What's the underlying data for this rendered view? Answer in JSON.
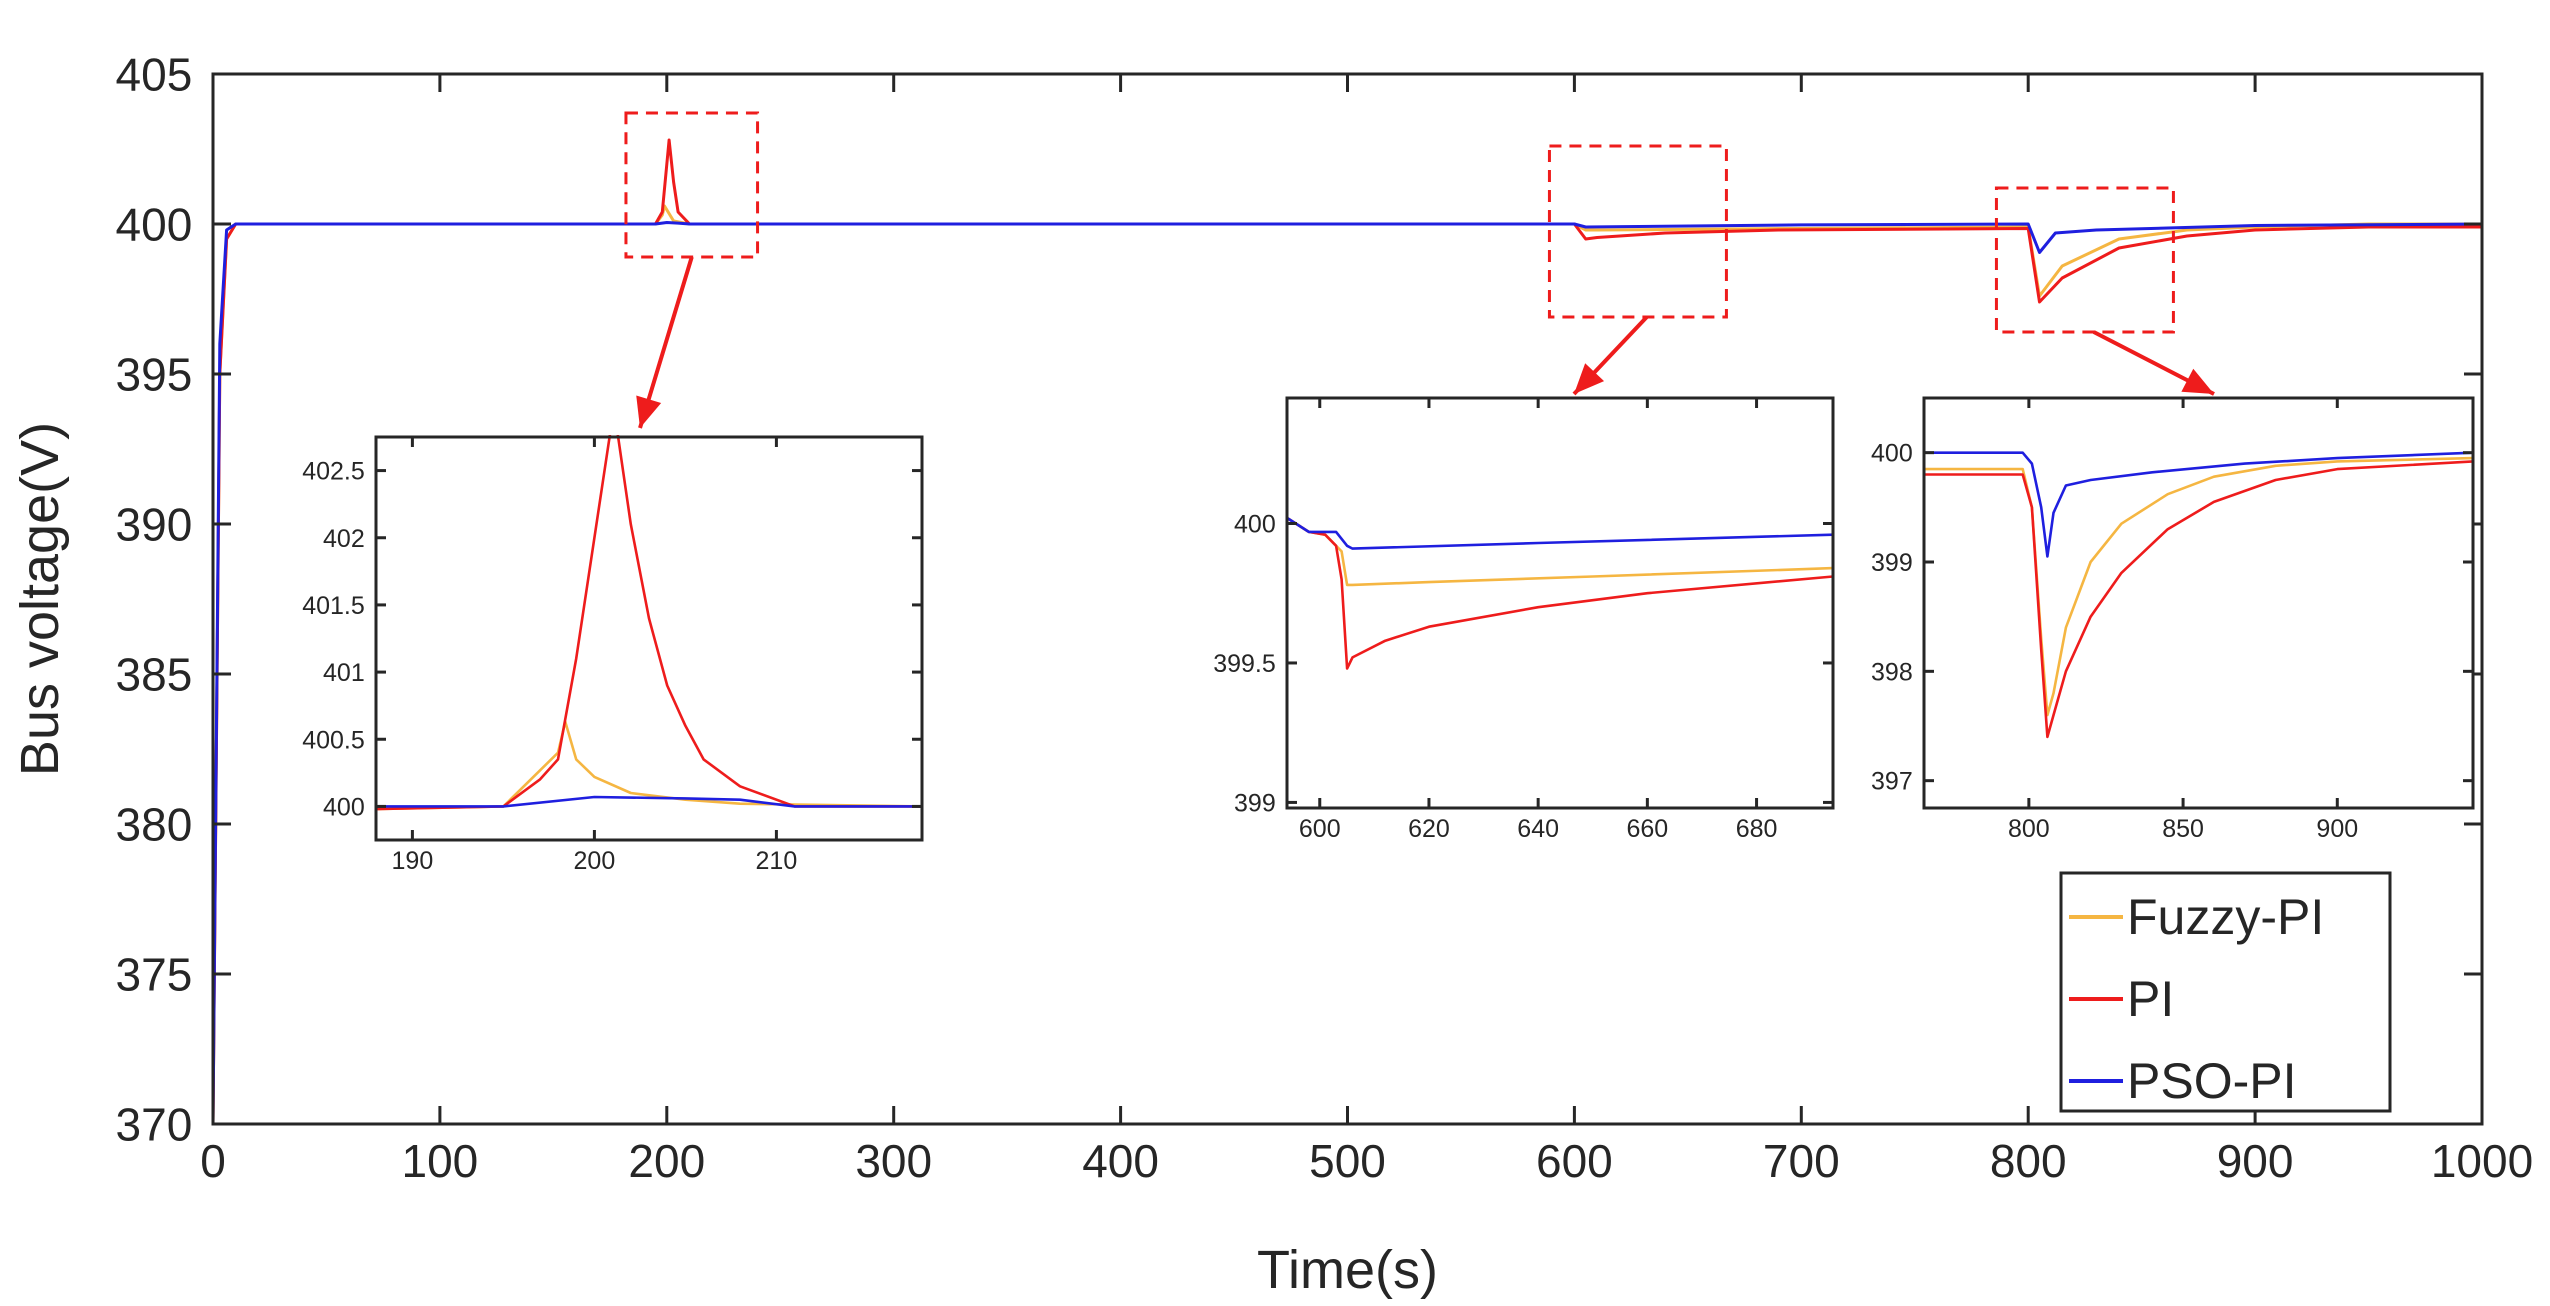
{
  "colors": {
    "fuzzy_pi": "#f5b642",
    "pi": "#ee1c1c",
    "pso_pi": "#1f1fdf",
    "axis": "#262626",
    "zoom_box": "#ee1c1c"
  },
  "chart_data": [
    {
      "id": "main",
      "type": "line",
      "title": "",
      "xlabel": "Time(s)",
      "ylabel": "Bus voltage(V)",
      "xlim": [
        0,
        1000
      ],
      "ylim": [
        370,
        405
      ],
      "xticks": [
        0,
        100,
        200,
        300,
        400,
        500,
        600,
        700,
        800,
        900,
        1000
      ],
      "yticks": [
        370,
        375,
        380,
        385,
        390,
        395,
        400,
        405
      ],
      "legend": {
        "position": "bottom-right",
        "entries": [
          "Fuzzy-PI",
          "PI",
          "PSO-PI"
        ]
      },
      "series": [
        {
          "name": "Fuzzy-PI",
          "x": [
            0,
            3,
            6,
            10,
            195,
            198,
            199,
            203,
            210,
            600,
            605,
            610,
            700,
            800,
            805,
            815,
            840,
            870,
            900,
            950,
            1000
          ],
          "y": [
            370,
            395,
            399.5,
            400,
            400,
            400.3,
            400.6,
            400.1,
            400,
            400,
            399.8,
            399.8,
            399.85,
            399.9,
            397.6,
            398.6,
            399.5,
            399.8,
            399.9,
            400,
            400
          ]
        },
        {
          "name": "PI",
          "x": [
            0,
            3,
            6,
            10,
            195,
            198,
            201,
            203,
            205,
            210,
            600,
            605,
            610,
            640,
            690,
            800,
            805,
            815,
            840,
            870,
            900,
            950,
            1000
          ],
          "y": [
            370,
            395,
            399.5,
            400,
            400,
            400.4,
            402.8,
            401.4,
            400.4,
            400,
            400,
            399.5,
            399.55,
            399.7,
            399.8,
            399.85,
            397.4,
            398.2,
            399.2,
            399.6,
            399.8,
            399.9,
            399.9
          ]
        },
        {
          "name": "PSO-PI",
          "x": [
            0,
            3,
            6,
            10,
            195,
            200,
            205,
            210,
            600,
            605,
            700,
            800,
            805,
            812,
            830,
            900,
            1000
          ],
          "y": [
            370,
            396,
            399.8,
            400,
            400,
            400.05,
            400.03,
            400,
            400,
            399.9,
            399.97,
            400,
            399.05,
            399.7,
            399.8,
            399.95,
            400
          ]
        }
      ],
      "annotations": [
        {
          "type": "zoom-box",
          "x_range": [
            182,
            240
          ],
          "y_range": [
            398.9,
            403.7
          ]
        },
        {
          "type": "zoom-box",
          "x_range": [
            589,
            667
          ],
          "y_range": [
            396.9,
            402.6
          ]
        },
        {
          "type": "zoom-box",
          "x_range": [
            786,
            864
          ],
          "y_range": [
            396.4,
            401.2
          ]
        }
      ]
    },
    {
      "id": "inset-1",
      "type": "line",
      "xlim": [
        188,
        218
      ],
      "ylim": [
        399.75,
        402.75
      ],
      "xticks": [
        190,
        200,
        210
      ],
      "yticks": [
        400,
        400.5,
        401,
        401.5,
        402,
        402.5
      ],
      "ytick_labels": [
        "400",
        "400.5",
        "401",
        "401.5",
        "402",
        "402.5"
      ],
      "series": [
        {
          "name": "Fuzzy-PI",
          "x": [
            188,
            195,
            198,
            198.4,
            199,
            200,
            202,
            205,
            208,
            218
          ],
          "y": [
            399.98,
            400,
            400.4,
            400.63,
            400.35,
            400.22,
            400.1,
            400.05,
            400.02,
            400
          ]
        },
        {
          "name": "PI",
          "x": [
            188,
            195,
            197,
            198,
            199,
            200,
            201,
            201.2,
            202,
            203,
            204,
            205,
            206,
            208,
            211,
            218
          ],
          "y": [
            399.98,
            400,
            400.2,
            400.35,
            401.1,
            402,
            402.9,
            402.85,
            402.1,
            401.4,
            400.9,
            400.6,
            400.35,
            400.15,
            400,
            400
          ]
        },
        {
          "name": "PSO-PI",
          "x": [
            188,
            195,
            200,
            205,
            208,
            211,
            218
          ],
          "y": [
            400,
            400,
            400.07,
            400.06,
            400.05,
            400,
            400
          ]
        }
      ]
    },
    {
      "id": "inset-2",
      "type": "line",
      "xlim": [
        594,
        694
      ],
      "ylim": [
        398.98,
        400.45
      ],
      "xticks": [
        600,
        620,
        640,
        660,
        680
      ],
      "yticks": [
        399,
        399.5,
        400
      ],
      "ytick_labels": [
        "399",
        "399.5",
        "400"
      ],
      "series": [
        {
          "name": "Fuzzy-PI",
          "x": [
            594,
            598,
            601,
            604,
            605,
            606,
            620,
            650,
            694
          ],
          "y": [
            400.02,
            399.97,
            399.96,
            399.9,
            399.78,
            399.78,
            399.79,
            399.81,
            399.84
          ]
        },
        {
          "name": "PI",
          "x": [
            594,
            598,
            601,
            603,
            604,
            605,
            606,
            612,
            620,
            640,
            660,
            694
          ],
          "y": [
            400.02,
            399.97,
            399.96,
            399.92,
            399.8,
            399.48,
            399.52,
            399.58,
            399.63,
            399.7,
            399.75,
            399.81
          ]
        },
        {
          "name": "PSO-PI",
          "x": [
            594,
            598,
            603,
            605,
            606,
            640,
            694
          ],
          "y": [
            400.02,
            399.97,
            399.97,
            399.92,
            399.91,
            399.93,
            399.96
          ]
        }
      ]
    },
    {
      "id": "inset-3",
      "type": "line",
      "xlim": [
        766,
        944
      ],
      "ylim": [
        396.75,
        400.5
      ],
      "xticks": [
        800,
        850,
        900
      ],
      "yticks": [
        397,
        398,
        399,
        400
      ],
      "ytick_labels": [
        "397",
        "398",
        "399",
        "400"
      ],
      "series": [
        {
          "name": "Fuzzy-PI",
          "x": [
            766,
            798,
            801,
            804,
            806,
            808,
            812,
            820,
            830,
            845,
            860,
            880,
            900,
            944
          ],
          "y": [
            399.85,
            399.85,
            399.5,
            398.3,
            397.6,
            397.8,
            398.4,
            399,
            399.35,
            399.62,
            399.78,
            399.88,
            399.92,
            399.95
          ]
        },
        {
          "name": "PI",
          "x": [
            766,
            798,
            801,
            804,
            806,
            808,
            812,
            820,
            830,
            845,
            860,
            880,
            900,
            944
          ],
          "y": [
            399.8,
            399.8,
            399.5,
            398.2,
            397.4,
            397.6,
            398,
            398.5,
            398.9,
            399.3,
            399.55,
            399.75,
            399.85,
            399.92
          ]
        },
        {
          "name": "PSO-PI",
          "x": [
            766,
            798,
            801,
            804,
            806,
            808,
            812,
            820,
            840,
            870,
            900,
            944
          ],
          "y": [
            400,
            400,
            399.9,
            399.5,
            399.05,
            399.45,
            399.7,
            399.75,
            399.82,
            399.9,
            399.95,
            400
          ]
        }
      ]
    }
  ]
}
